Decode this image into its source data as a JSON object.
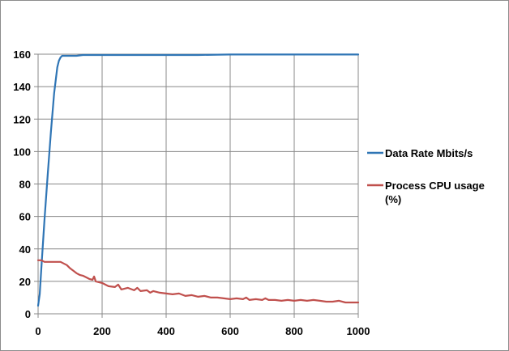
{
  "chart_data": {
    "type": "line",
    "title": "",
    "xlabel": "",
    "ylabel": "",
    "xlim": [
      0,
      1000
    ],
    "ylim": [
      0,
      160
    ],
    "x_ticks": [
      0,
      200,
      400,
      600,
      800,
      1000
    ],
    "x_tick_labels": [
      "0",
      "200",
      "400",
      "600",
      "800",
      "1000"
    ],
    "y_ticks": [
      0,
      20,
      40,
      60,
      80,
      100,
      120,
      140,
      160
    ],
    "y_tick_labels": [
      "0",
      "20",
      "40",
      "60",
      "80",
      "100",
      "120",
      "140",
      "160"
    ],
    "grid": true,
    "legend_position": "right",
    "series": [
      {
        "name": "Data Rate Mbits/s",
        "legend_lines": [
          "Data Rate Mbits/s"
        ],
        "color": "#2f75b5",
        "x": [
          0,
          5,
          10,
          20,
          30,
          40,
          50,
          60,
          65,
          70,
          75,
          80,
          90,
          100,
          120,
          140,
          160,
          200,
          300,
          400,
          500,
          560,
          600,
          700,
          800,
          900,
          1000
        ],
        "y": [
          5,
          12,
          28,
          58,
          86,
          112,
          136,
          152,
          156,
          158,
          159,
          159,
          159,
          159,
          159,
          159.5,
          159.5,
          159.5,
          159.5,
          159.5,
          159.5,
          159.7,
          159.8,
          159.8,
          159.8,
          159.8,
          159.8
        ]
      },
      {
        "name": "Process CPU usage (%)",
        "legend_lines": [
          "Process CPU usage",
          "(%)"
        ],
        "color": "#c0504d",
        "x": [
          0,
          10,
          20,
          40,
          60,
          70,
          80,
          90,
          100,
          110,
          120,
          130,
          140,
          150,
          160,
          170,
          175,
          180,
          190,
          200,
          220,
          240,
          250,
          260,
          280,
          300,
          310,
          320,
          340,
          350,
          360,
          380,
          400,
          420,
          440,
          460,
          480,
          500,
          520,
          540,
          560,
          580,
          600,
          620,
          640,
          650,
          660,
          680,
          700,
          710,
          720,
          740,
          760,
          780,
          800,
          820,
          840,
          860,
          880,
          900,
          920,
          940,
          960,
          980,
          1000
        ],
        "y": [
          33,
          33,
          32,
          32,
          32,
          32,
          31,
          30,
          28,
          26.5,
          25,
          24,
          23.5,
          22.5,
          21.5,
          21,
          23,
          20,
          19.5,
          19,
          17,
          16.5,
          18,
          15,
          16,
          14.5,
          16,
          14,
          14.5,
          13,
          14,
          13,
          12.5,
          12,
          12.5,
          11,
          11.5,
          10.5,
          11,
          10,
          10,
          9.5,
          9,
          9.5,
          9,
          10,
          8.5,
          9,
          8.5,
          9.5,
          8.5,
          8.5,
          8,
          8.5,
          8,
          8.5,
          8,
          8.5,
          8,
          7.5,
          7.5,
          8,
          7,
          7,
          7
        ]
      }
    ]
  }
}
